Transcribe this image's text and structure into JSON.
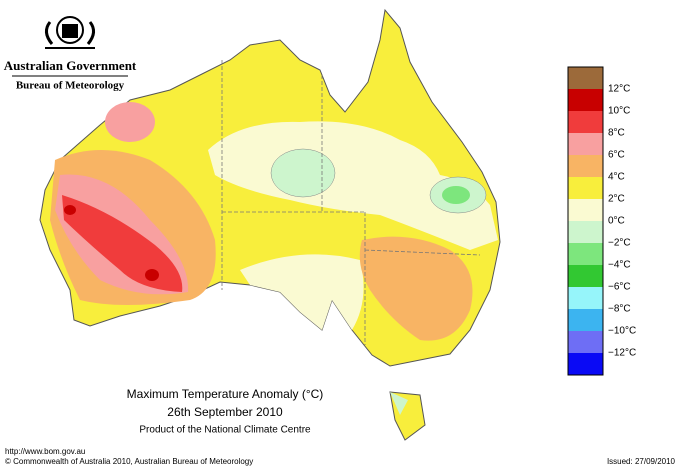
{
  "header": {
    "government": "Australian Government",
    "bureau": "Bureau of Meteorology"
  },
  "legend": {
    "colors": [
      "#9c6a3a",
      "#c80000",
      "#f03c3c",
      "#f8a0a0",
      "#f8b464",
      "#f8ee3c",
      "#fafad2",
      "#cdf5cd",
      "#7de67d",
      "#32c832",
      "#96f5fa",
      "#3cb4f0",
      "#6e6ef5",
      "#0a0af5"
    ],
    "labels": [
      "12°C",
      "10°C",
      "8°C",
      "6°C",
      "4°C",
      "2°C",
      "0°C",
      "−2°C",
      "−4°C",
      "−6°C",
      "−8°C",
      "−10°C",
      "−12°C"
    ]
  },
  "title": {
    "line1": "Maximum Temperature Anomaly (°C)",
    "line2": "26th September 2010",
    "line3": "Product of the National Climate Centre"
  },
  "footer": {
    "url": "http://www.bom.gov.au",
    "copyright": "© Commonwealth of Australia 2010, Australian Bureau of Meteorology",
    "issued": "Issued: 27/09/2010"
  }
}
